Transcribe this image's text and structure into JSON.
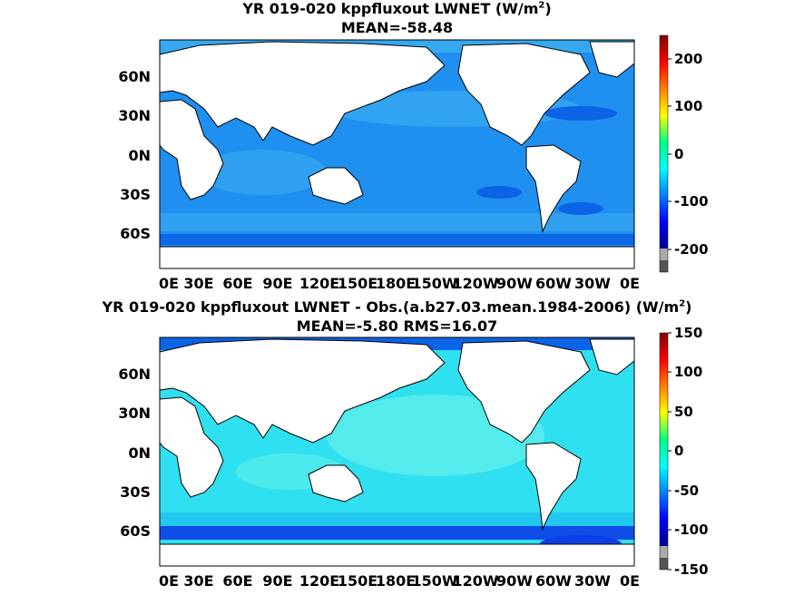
{
  "panels": [
    {
      "title_line1_prefix": "YR 019-020 kppfluxout  LWNET (W/m",
      "title_sup": "2",
      "title_line1_suffix": ")",
      "title_line2": "MEAN=-58.48",
      "lat_labels": [
        "60N",
        "30N",
        "0N",
        "30S",
        "60S"
      ],
      "lon_labels": [
        "0E",
        "30E",
        "60E",
        "90E",
        "120E",
        "150E",
        "180E",
        "150W",
        "120W",
        "90W",
        "60W",
        "30W",
        "0E"
      ],
      "colorbar_labels": [
        "200",
        "100",
        "0",
        "-100",
        "-200"
      ],
      "colorbar_range": [
        -250,
        250
      ],
      "ocean_colors": {
        "base": "#1f8ff0",
        "light": "#36a8f0",
        "dark": "#0b63e6"
      }
    },
    {
      "title_line1_prefix": "YR 019-020 kppfluxout LWNET - Obs.(a.b27.03.mean.1984-2006) (W/m",
      "title_sup": "2",
      "title_line1_suffix": ")",
      "title_line2": "MEAN=-5.80 RMS=16.07",
      "lat_labels": [
        "60N",
        "30N",
        "0N",
        "30S",
        "60S"
      ],
      "lon_labels": [
        "0E",
        "30E",
        "60E",
        "90E",
        "120E",
        "150E",
        "180E",
        "150W",
        "120W",
        "90W",
        "60W",
        "30W",
        "0E"
      ],
      "colorbar_labels": [
        "150",
        "100",
        "50",
        "0",
        "-50",
        "-100",
        "-150"
      ],
      "colorbar_range": [
        -150,
        150
      ],
      "ocean_colors": {
        "base": "#2fe0f0",
        "light": "#62f0e8",
        "dark": "#0b3ee6"
      }
    }
  ],
  "colors": {
    "land": "#ffffff",
    "coast": "#000000",
    "colorbar_gray_dark": "#555555",
    "colorbar_gray_light": "#aaaaaa"
  }
}
